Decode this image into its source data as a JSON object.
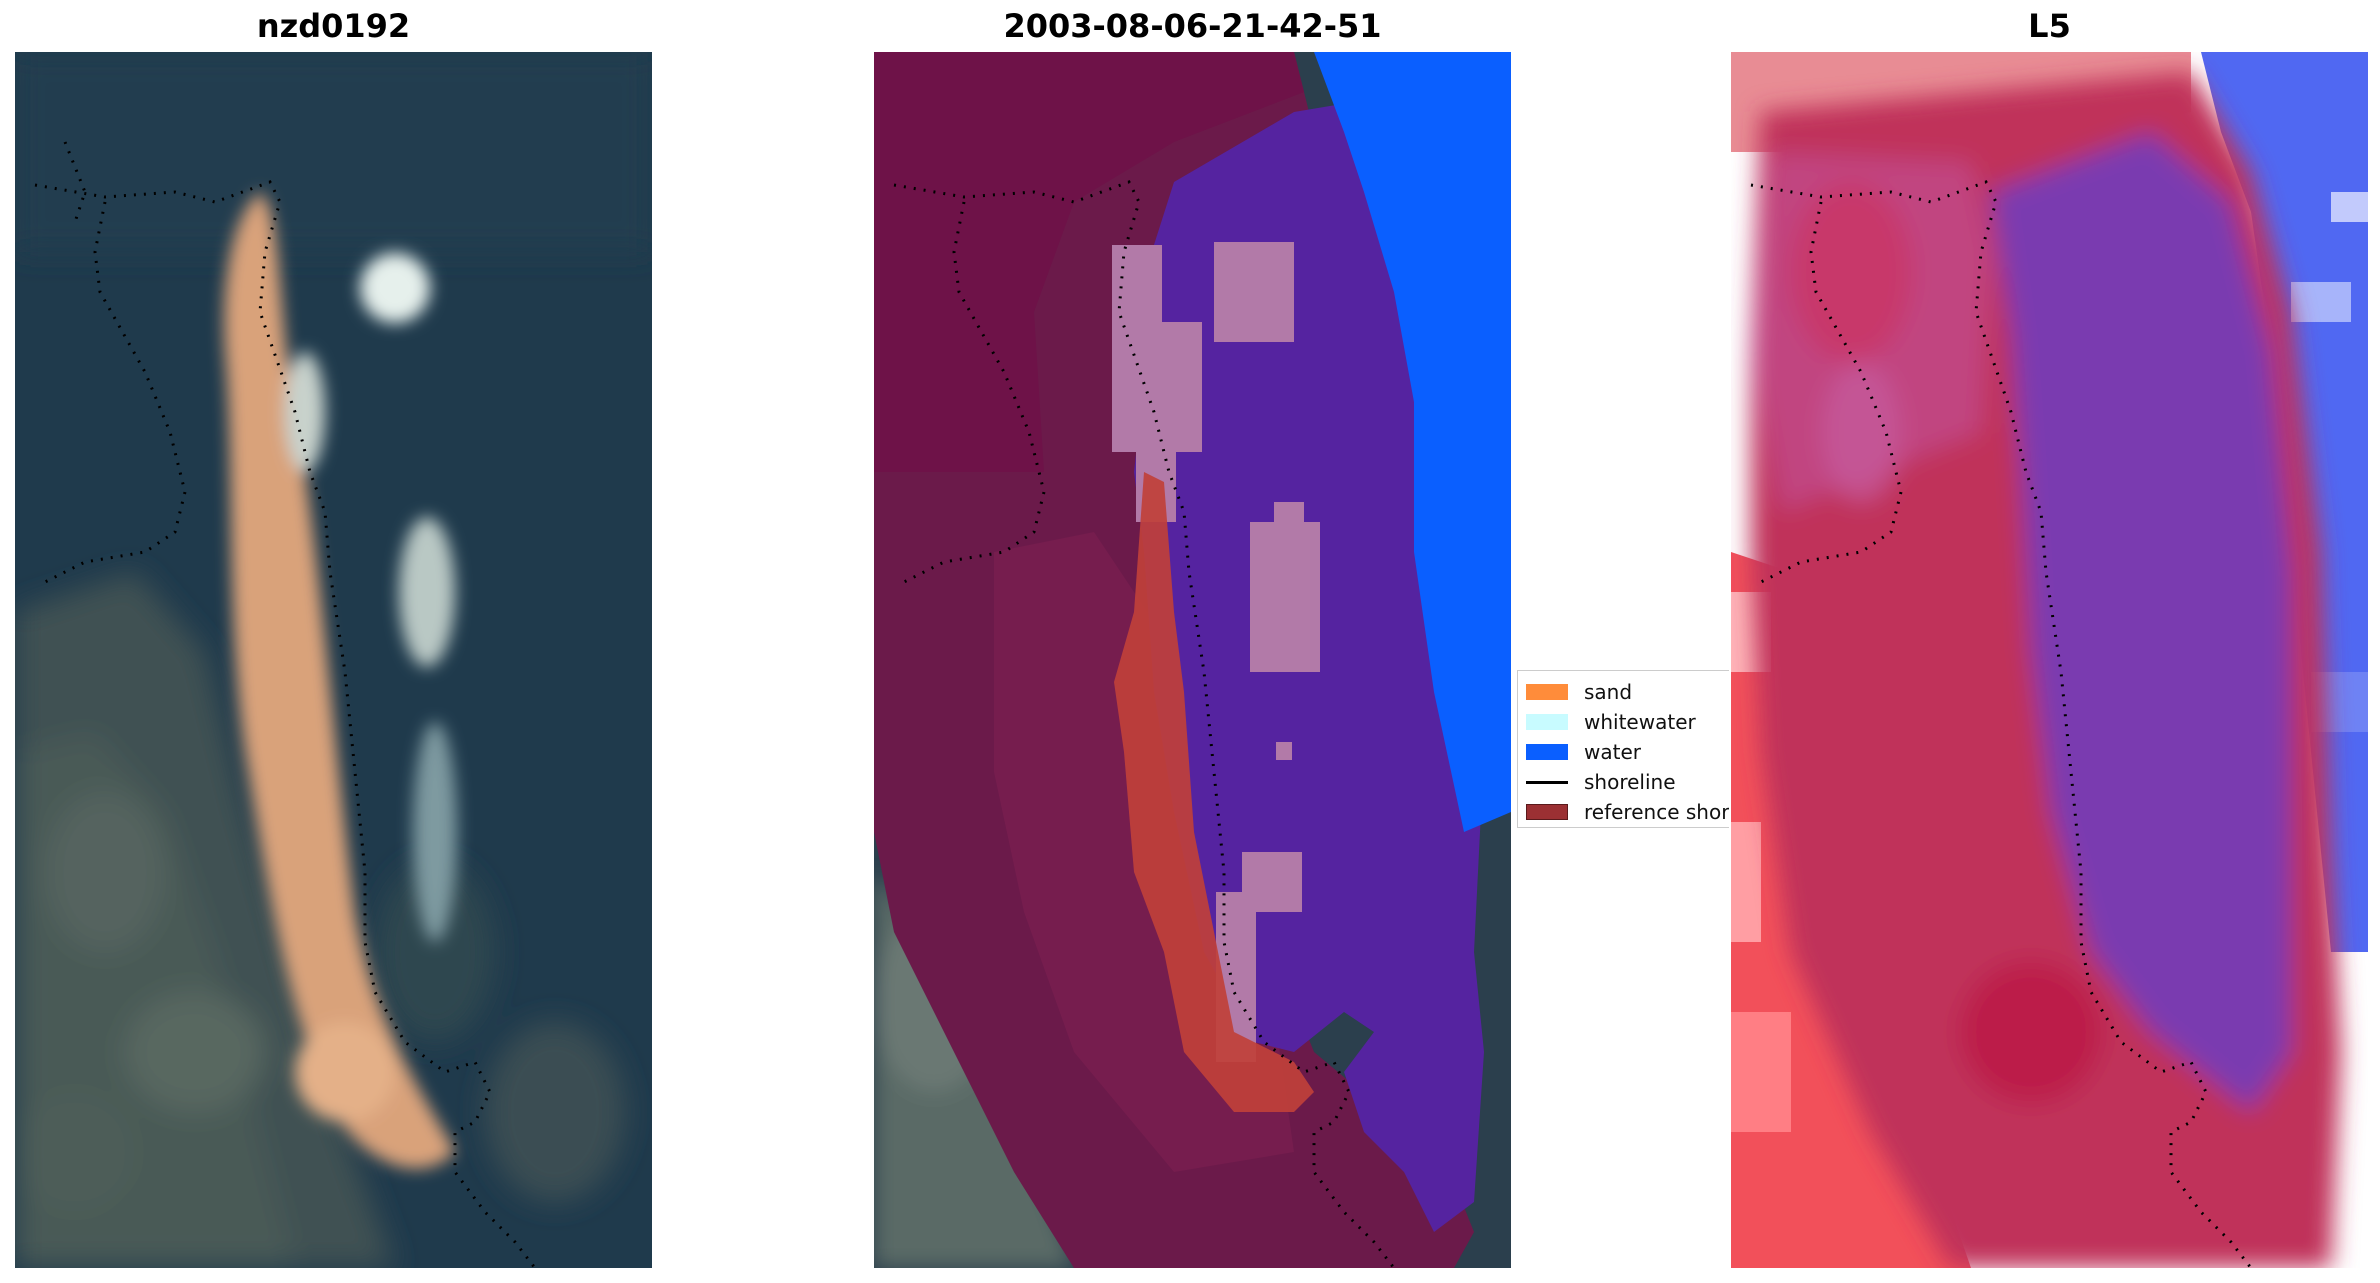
{
  "panels": [
    {
      "title": "nzd0192"
    },
    {
      "title": "2003-08-06-21-42-51"
    },
    {
      "title": "L5"
    }
  ],
  "legend": {
    "items": [
      {
        "label": "sand",
        "color": "#ff8c3a",
        "kind": "patch"
      },
      {
        "label": "whitewater",
        "color": "#c8fbff",
        "kind": "patch"
      },
      {
        "label": "water",
        "color": "#0a5fff",
        "kind": "patch"
      },
      {
        "label": "shoreline",
        "color": "#000000",
        "kind": "line"
      },
      {
        "label": "reference shoreline buffer",
        "color": "#9b3033",
        "kind": "patch"
      }
    ]
  },
  "colors": {
    "deep_water_rgb": "#1f3a4e",
    "land_rgb": "#3e4f4f",
    "sand_rgb": "#d9a27a",
    "buffer_overlay": "#6b1042",
    "water_class": "#5523a0",
    "water_edge": "#0a5fff",
    "sand_class": "#c0403a",
    "whitewater_class": "#b27aa8",
    "l5_magenta": "#c0305a",
    "l5_purple": "#7a3ab0",
    "l5_blue": "#4a5ef0"
  }
}
